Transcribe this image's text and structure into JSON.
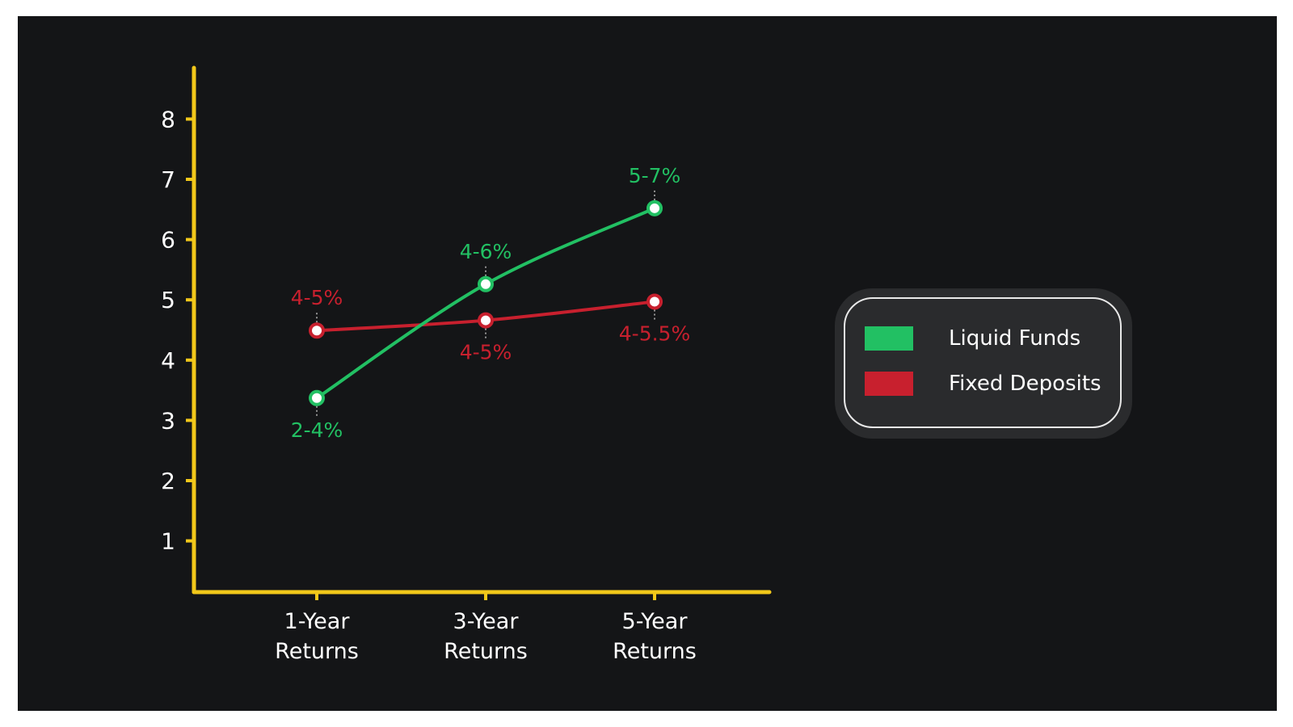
{
  "chart_data": {
    "type": "line",
    "categories": [
      "1-Year Returns",
      "3-Year Returns",
      "5-Year Returns"
    ],
    "category_lines": [
      [
        "1-Year",
        "Returns"
      ],
      [
        "3-Year",
        "Returns"
      ],
      [
        "5-Year",
        "Returns"
      ]
    ],
    "y_ticks": [
      1,
      2,
      3,
      4,
      5,
      6,
      7,
      8
    ],
    "ylim": [
      0.15,
      8.85
    ],
    "grid": false,
    "legend_position": "right",
    "axis_color": "#f2c81a",
    "background": "#141517",
    "series": [
      {
        "name": "Liquid Funds",
        "color": "#22c063",
        "values": [
          3.37,
          5.26,
          6.52
        ],
        "labels": [
          "2-4%",
          "4-6%",
          "5-7%"
        ],
        "label_positions": [
          "below",
          "above",
          "above"
        ]
      },
      {
        "name": "Fixed Deposits",
        "color": "#c8202e",
        "values": [
          4.49,
          4.66,
          4.97
        ],
        "labels": [
          "4-5%",
          "4-5%",
          "4-5.5%"
        ],
        "label_positions": [
          "above",
          "below",
          "below"
        ]
      }
    ]
  }
}
